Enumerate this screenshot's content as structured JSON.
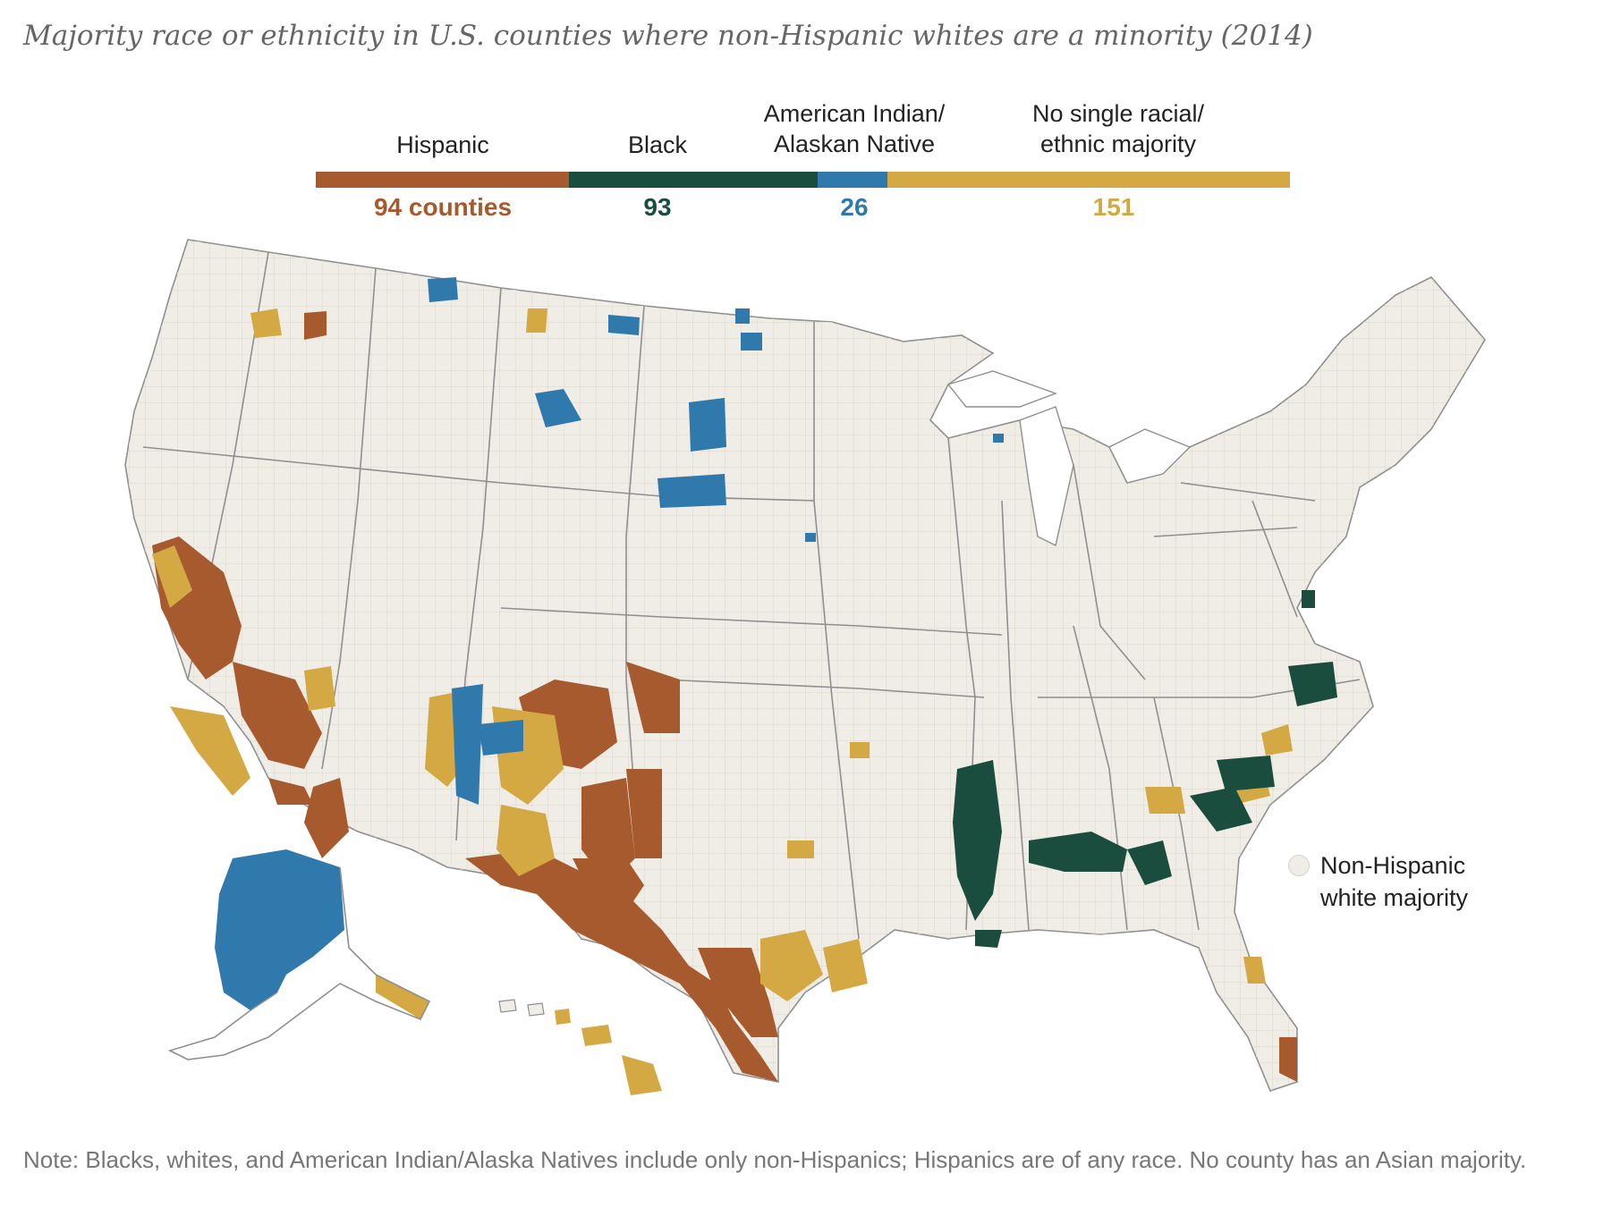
{
  "title": "Majority race or ethnicity in U.S. counties where non-Hispanic whites are a minority (2014)",
  "legend": {
    "hispanic": {
      "label": "Hispanic",
      "count": "94 counties",
      "color": "#a65a2e"
    },
    "black": {
      "label": "Black",
      "count": "93",
      "color": "#1b4d3e"
    },
    "aian": {
      "label_line1": "American Indian/",
      "label_line2": "Alaskan Native",
      "count": "26",
      "color": "#2f79ad"
    },
    "none": {
      "label_line1": "No single racial/",
      "label_line2": "ethnic majority",
      "count": "151",
      "color": "#d4a843"
    }
  },
  "nhw_key": {
    "line1": "Non-Hispanic",
    "line2": "white majority",
    "color": "#efede6"
  },
  "note": "Note: Blacks, whites, and American Indian/Alaska Natives include only non-Hispanics; Hispanics are of any race. No county has an Asian majority."
}
